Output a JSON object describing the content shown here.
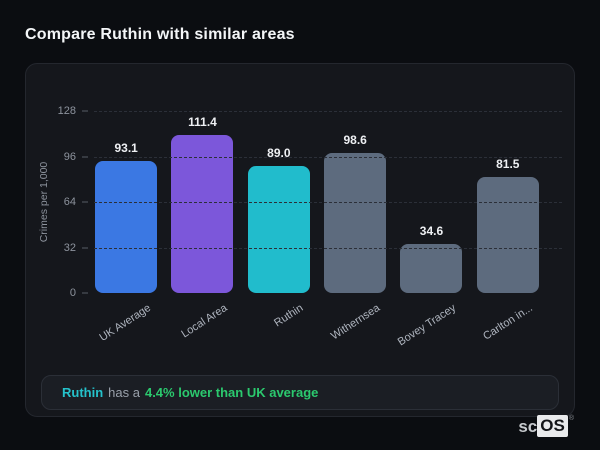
{
  "page": {
    "title": "Compare Ruthin with similar areas"
  },
  "chart_data": {
    "type": "bar",
    "categories": [
      "UK Average",
      "Local Area",
      "Ruthin",
      "Withernsea",
      "Bovey Tracey",
      "Carlton in..."
    ],
    "values": [
      93.1,
      111.4,
      89.0,
      98.6,
      34.6,
      81.5
    ],
    "value_labels": [
      "93.1",
      "111.4",
      "89.0",
      "98.6",
      "34.6",
      "81.5"
    ],
    "bar_colors": [
      "#3b78e3",
      "#7c57da",
      "#21bccc",
      "#5d6b7e",
      "#5d6b7e",
      "#5d6b7e"
    ],
    "title": "",
    "xlabel": "",
    "ylabel": "Crimes per 1,000",
    "yticks": [
      0,
      32,
      64,
      96,
      128
    ],
    "ylim": [
      0,
      128
    ],
    "grid": "horizontal-dashed",
    "legend_position": "none"
  },
  "note": {
    "area": "Ruthin",
    "connector": "has a",
    "stat": "4.4% lower than UK average"
  },
  "brand": {
    "prefix": "sc",
    "suffix": "OS",
    "trademark": "®"
  },
  "colors": {
    "highlight_area": "#25c2cb",
    "highlight_stat": "#2bc96e",
    "bar_uk_average": "#3b78e3",
    "bar_local_area": "#7c57da",
    "bar_ruthin": "#21bccc",
    "bar_comparison": "#5d6b7e"
  }
}
